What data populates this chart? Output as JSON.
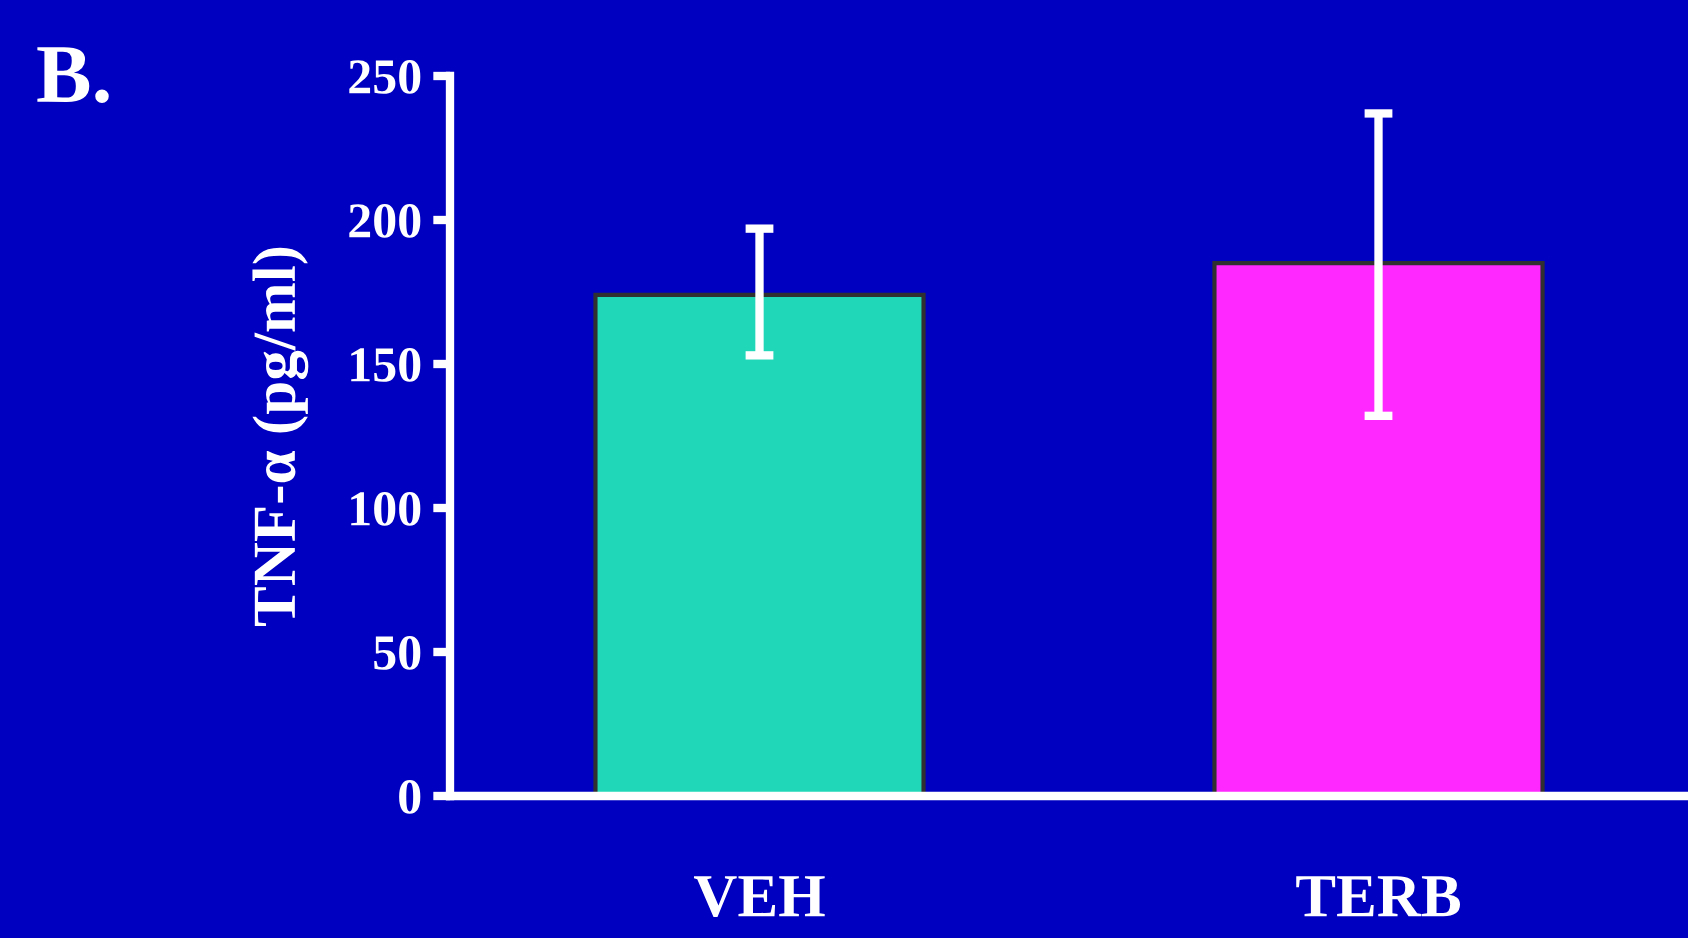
{
  "chart_data": {
    "type": "bar",
    "title": "B.",
    "ylabel": "TNF-α (pg/ml)",
    "categories": [
      "VEH",
      "TERB"
    ],
    "values": [
      174,
      185
    ],
    "colors": [
      "#20d8b8",
      "#ff28ff"
    ],
    "errors": [
      [
        153,
        197
      ],
      [
        132,
        237
      ]
    ],
    "ylim": [
      0,
      250
    ],
    "yticks": [
      0,
      50,
      100,
      150,
      200,
      250
    ],
    "grid": false,
    "legend": false
  }
}
